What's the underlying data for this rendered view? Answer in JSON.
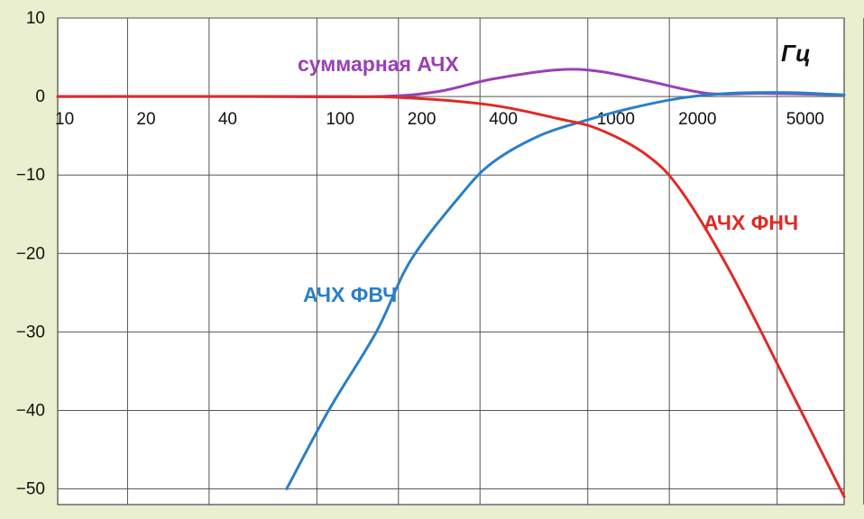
{
  "chart_data": {
    "type": "line",
    "x_scale": "log",
    "xlim": [
      10,
      8000
    ],
    "ylim": [
      -52,
      10
    ],
    "x_tick_labels": [
      "10",
      "20",
      "40",
      "100",
      "200",
      "400",
      "1000",
      "2000",
      "5000"
    ],
    "y_tick_labels": [
      "10",
      "0",
      "−10",
      "−20",
      "−30",
      "−40",
      "−50"
    ],
    "unit_label": "Гц",
    "grid": true,
    "series": [
      {
        "name": "суммарная АЧХ",
        "color": "#9b3fb5",
        "x": [
          10,
          50,
          150,
          250,
          400,
          700,
          1000,
          1500,
          2500,
          4000,
          8000
        ],
        "y": [
          0,
          0,
          0,
          0.6,
          2.2,
          3.4,
          3.2,
          2.0,
          0.4,
          0.4,
          0.2
        ]
      },
      {
        "name": "АЧХ ФВЧ",
        "color": "#2a7fc8",
        "x": [
          70,
          100,
          150,
          200,
          300,
          400,
          600,
          900,
          1300,
          2000,
          3000,
          5000,
          8000
        ],
        "y": [
          -50,
          -40,
          -30,
          -21,
          -13,
          -8.5,
          -5,
          -3,
          -1.5,
          -0.2,
          0.4,
          0.5,
          0.2
        ]
      },
      {
        "name": "АЧХ ФНЧ",
        "color": "#e02a25",
        "x": [
          10,
          100,
          200,
          400,
          700,
          1000,
          1500,
          2000,
          3000,
          5000,
          8000
        ],
        "y": [
          0,
          0,
          -0.2,
          -1.1,
          -2.8,
          -4.2,
          -7.5,
          -12,
          -22,
          -37,
          -51
        ]
      }
    ]
  }
}
